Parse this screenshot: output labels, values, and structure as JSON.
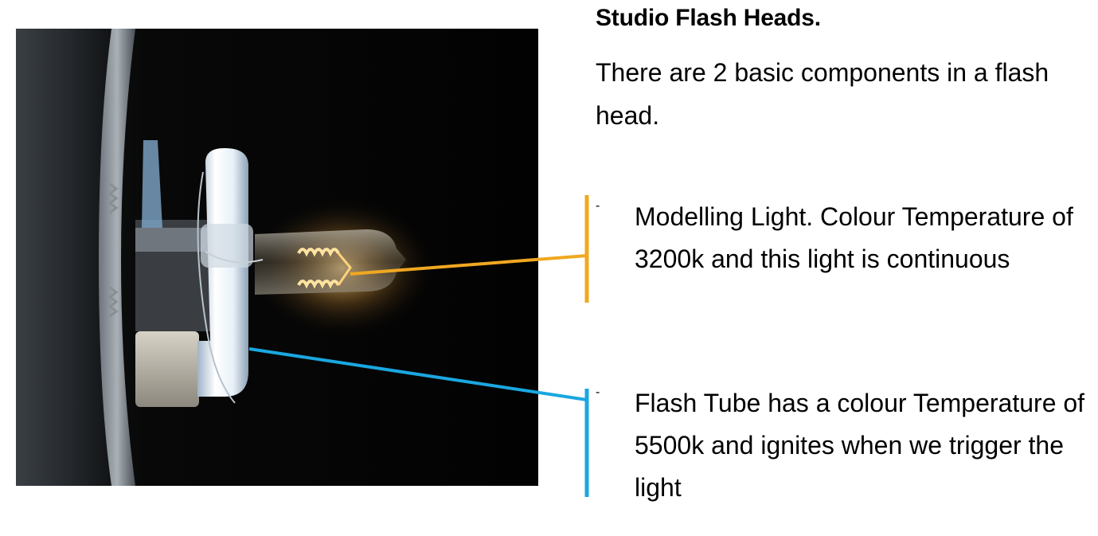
{
  "heading": "Studio Flash Heads.",
  "intro": "There are 2 basic components in a flash head.",
  "components": [
    {
      "marker": "-",
      "text": "Modelling Light. Colour Temperature of 3200k and this light is continuous",
      "color": "#F0A820"
    },
    {
      "marker": "-",
      "text": "Flash Tube has a colour Temperature of 5500k and ignites when we trigger the light",
      "color": "#1AA7E0"
    }
  ]
}
